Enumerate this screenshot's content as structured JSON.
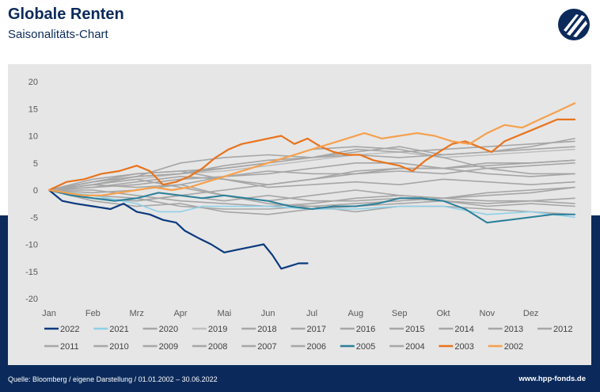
{
  "header": {
    "title": "Globale Renten",
    "subtitle": "Saisonalitäts-Chart",
    "logo_icon": "hpp-fonds-logo-icon"
  },
  "footer": {
    "source": "Quelle: Bloomberg / eigene Darstellung / 01.01.2002 – 30.06.2022",
    "url": "www.hpp-fonds.de"
  },
  "colors": {
    "navy": "#0b2a5b",
    "plot_background": "#e6e6e6",
    "grey_series": "#a6a6a6"
  },
  "chart_data": {
    "type": "line",
    "title": "Saisonalitäts-Chart",
    "xlabel": "",
    "ylabel": "",
    "ylim": [
      -20,
      20
    ],
    "yticks": [
      20,
      15,
      10,
      5,
      0,
      -5,
      -10,
      -15,
      -20
    ],
    "x_tick_labels": [
      "Jan",
      "Feb",
      "Mrz",
      "Apr",
      "Mai",
      "Jun",
      "Jul",
      "Aug",
      "Sep",
      "Okt",
      "Nov",
      "Dez"
    ],
    "grid": false,
    "legend_position": "bottom",
    "x_unit": "month index (0 = Jan, 12 = end of Dez)",
    "series": [
      {
        "name": "2022",
        "color": "#0b3a7e",
        "width": 2.2,
        "x": [
          0,
          0.3,
          0.6,
          1,
          1.4,
          1.7,
          2,
          2.3,
          2.6,
          2.9,
          3.1,
          3.4,
          3.7,
          4,
          4.3,
          4.6,
          4.9,
          5.1,
          5.3,
          5.5,
          5.7,
          5.9
        ],
        "y": [
          0,
          -2,
          -2.5,
          -3,
          -3.5,
          -2.5,
          -4,
          -4.5,
          -5.5,
          -6,
          -7.5,
          -8.8,
          -10,
          -11.5,
          -11,
          -10.5,
          -10,
          -12,
          -14.5,
          -14,
          -13.5,
          -13.5
        ]
      },
      {
        "name": "2021",
        "color": "#8fd0e8",
        "width": 1.6,
        "x": [
          0,
          1,
          2,
          2.5,
          3,
          3.5,
          4,
          5,
          6,
          7,
          8,
          9,
          10,
          11,
          12
        ],
        "y": [
          0,
          -1,
          -2.5,
          -4,
          -4,
          -3,
          -3,
          -3,
          -3.5,
          -3.5,
          -3,
          -3,
          -4.5,
          -4,
          -5
        ]
      },
      {
        "name": "2020",
        "color": "#a6a6a6",
        "width": 1.6,
        "x": [
          0,
          1,
          2,
          3,
          4,
          5,
          6,
          7,
          8,
          9,
          10,
          11,
          12
        ],
        "y": [
          0,
          1.5,
          2.5,
          5,
          6,
          6.5,
          6,
          7,
          8,
          6.5,
          7,
          8,
          9.5
        ]
      },
      {
        "name": "2019",
        "color": "#bfbfbf",
        "width": 1.6,
        "x": [
          0,
          1,
          2,
          3,
          4,
          5,
          6,
          7,
          8,
          9,
          10,
          11,
          12
        ],
        "y": [
          0,
          1,
          2,
          3,
          3.5,
          4.5,
          5.5,
          6.5,
          7,
          6,
          6.5,
          7,
          7.5
        ]
      },
      {
        "name": "2018",
        "color": "#a6a6a6",
        "width": 1.6,
        "x": [
          0,
          1,
          2,
          3,
          4,
          5,
          6,
          7,
          8,
          9,
          10,
          11,
          12
        ],
        "y": [
          0,
          -1.5,
          -2,
          -1,
          -2,
          -1,
          -2,
          -2,
          -1.5,
          -2,
          -3,
          -2.5,
          -3
        ]
      },
      {
        "name": "2017",
        "color": "#a6a6a6",
        "width": 1.6,
        "x": [
          0,
          1,
          2,
          3,
          4,
          5,
          6,
          7,
          8,
          9,
          10,
          11,
          12
        ],
        "y": [
          0,
          0.5,
          1,
          2,
          2.5,
          3.5,
          3,
          3,
          4,
          4,
          5,
          5,
          5.5
        ]
      },
      {
        "name": "2016",
        "color": "#a6a6a6",
        "width": 1.6,
        "x": [
          0,
          1,
          2,
          3,
          4,
          5,
          6,
          7,
          8,
          9,
          10,
          11,
          12
        ],
        "y": [
          0,
          2,
          3,
          3.5,
          4,
          5,
          7.5,
          8,
          7.5,
          6,
          4,
          3,
          3
        ]
      },
      {
        "name": "2015",
        "color": "#a6a6a6",
        "width": 1.6,
        "x": [
          0,
          1,
          2,
          3,
          4,
          5,
          6,
          7,
          8,
          9,
          10,
          11,
          12
        ],
        "y": [
          0,
          1.5,
          3,
          3.5,
          2,
          0.5,
          1,
          1.5,
          1,
          2,
          1.5,
          1,
          1.5
        ]
      },
      {
        "name": "2014",
        "color": "#a6a6a6",
        "width": 1.6,
        "x": [
          0,
          1,
          2,
          3,
          4,
          5,
          6,
          7,
          8,
          9,
          10,
          11,
          12
        ],
        "y": [
          0,
          1,
          2.5,
          3,
          4.5,
          5.5,
          6,
          7.5,
          7,
          7.5,
          8,
          8.5,
          9
        ]
      },
      {
        "name": "2013",
        "color": "#a6a6a6",
        "width": 1.6,
        "x": [
          0,
          1,
          2,
          3,
          4,
          5,
          6,
          7,
          8,
          9,
          10,
          11,
          12
        ],
        "y": [
          0,
          -0.5,
          0,
          1,
          -1,
          -2.5,
          -3,
          -4,
          -3,
          -3,
          -3.5,
          -4,
          -4.5
        ]
      },
      {
        "name": "2012",
        "color": "#a6a6a6",
        "width": 1.6,
        "x": [
          0,
          1,
          2,
          3,
          4,
          5,
          6,
          7,
          8,
          9,
          10,
          11,
          12
        ],
        "y": [
          0,
          1.5,
          2.5,
          3,
          4,
          5,
          6,
          6.5,
          6,
          6.5,
          7,
          7.5,
          8
        ]
      },
      {
        "name": "2011",
        "color": "#a6a6a6",
        "width": 1.6,
        "x": [
          0,
          1,
          2,
          3,
          4,
          5,
          6,
          7,
          8,
          9,
          10,
          11,
          12
        ],
        "y": [
          0,
          -1.5,
          -2,
          -1,
          0,
          1,
          2,
          3.5,
          4,
          4,
          4.5,
          5,
          5.5
        ]
      },
      {
        "name": "2010",
        "color": "#a6a6a6",
        "width": 1.6,
        "x": [
          0,
          1,
          2,
          3,
          4,
          5,
          6,
          7,
          8,
          9,
          10,
          11,
          12
        ],
        "y": [
          0,
          1,
          0.5,
          1,
          2.5,
          3,
          4,
          5,
          5,
          4,
          3,
          2.5,
          3
        ]
      },
      {
        "name": "2009",
        "color": "#a6a6a6",
        "width": 1.6,
        "x": [
          0,
          1,
          2,
          3,
          4,
          5,
          6,
          7,
          8,
          9,
          10,
          11,
          12
        ],
        "y": [
          0,
          -2,
          -3,
          -2.5,
          -4,
          -4.5,
          -3.5,
          -3,
          -2.5,
          -2,
          -2.5,
          -2,
          -1.5
        ]
      },
      {
        "name": "2008",
        "color": "#a6a6a6",
        "width": 1.6,
        "x": [
          0,
          1,
          2,
          3,
          4,
          5,
          6,
          7,
          8,
          9,
          10,
          11,
          12
        ],
        "y": [
          0,
          1,
          2,
          0.5,
          -1,
          -2,
          -1,
          0,
          -1,
          -1.5,
          -1,
          -0.5,
          0.5
        ]
      },
      {
        "name": "2007",
        "color": "#a6a6a6",
        "width": 1.6,
        "x": [
          0,
          1,
          2,
          3,
          4,
          5,
          6,
          7,
          8,
          9,
          10,
          11,
          12
        ],
        "y": [
          0,
          0,
          -1,
          -2,
          -2.5,
          -3,
          -2.5,
          -1.5,
          -1,
          -1.5,
          -0.5,
          0,
          0.5
        ]
      },
      {
        "name": "2006",
        "color": "#a6a6a6",
        "width": 1.6,
        "x": [
          0,
          1,
          2,
          3,
          4,
          5,
          6,
          7,
          8,
          9,
          10,
          11,
          12
        ],
        "y": [
          0,
          -1,
          -1.5,
          -3,
          -3.5,
          -3.5,
          -3,
          -2.5,
          -2,
          -1.5,
          -2,
          -2,
          -2.5
        ]
      },
      {
        "name": "2005",
        "color": "#2a7f9a",
        "width": 2,
        "x": [
          0,
          0.5,
          1,
          1.5,
          2,
          2.5,
          3,
          3.5,
          4,
          4.5,
          5,
          5.5,
          6,
          6.5,
          7,
          7.5,
          8,
          8.5,
          9,
          9.5,
          10,
          10.5,
          11,
          11.5,
          12
        ],
        "y": [
          0,
          -1,
          -1.5,
          -2,
          -1.5,
          -0.5,
          -1,
          -1.5,
          -1,
          -1.5,
          -2,
          -3,
          -3.5,
          -3,
          -3,
          -2.5,
          -1.5,
          -1.5,
          -2,
          -3.5,
          -6,
          -5.5,
          -5,
          -4.5,
          -4.5
        ]
      },
      {
        "name": "2004",
        "color": "#a6a6a6",
        "width": 1.6,
        "x": [
          0,
          1,
          2,
          3,
          4,
          5,
          6,
          7,
          8,
          9,
          10,
          11,
          12
        ],
        "y": [
          0,
          0.5,
          1.5,
          2.5,
          2,
          1,
          2,
          3,
          3.5,
          3,
          4,
          4.5,
          5
        ]
      },
      {
        "name": "2003",
        "color": "#e8731c",
        "width": 2.2,
        "x": [
          0,
          0.4,
          0.8,
          1.2,
          1.6,
          2,
          2.3,
          2.6,
          2.9,
          3.2,
          3.5,
          3.8,
          4.1,
          4.4,
          4.7,
          5,
          5.3,
          5.6,
          5.9,
          6.2,
          6.5,
          6.8,
          7.1,
          7.4,
          7.7,
          8,
          8.3,
          8.6,
          8.9,
          9.2,
          9.5,
          9.8,
          10.1,
          10.4,
          10.7,
          11,
          11.3,
          11.6,
          12
        ],
        "y": [
          0,
          1.5,
          2,
          3,
          3.5,
          4.5,
          3.5,
          1,
          1.5,
          2.5,
          4,
          6,
          7.5,
          8.5,
          9,
          9.5,
          10,
          8.5,
          9.5,
          8,
          7,
          6.5,
          6.5,
          5.5,
          5,
          4.5,
          3.5,
          5.5,
          7,
          8.5,
          9,
          8,
          7,
          9,
          10,
          11,
          12,
          13,
          13
        ]
      },
      {
        "name": "2002",
        "color": "#f6a04d",
        "width": 2.2,
        "x": [
          0,
          0.4,
          0.8,
          1.2,
          1.6,
          2,
          2.4,
          2.8,
          3.2,
          3.6,
          4,
          4.4,
          4.8,
          5.2,
          5.6,
          6,
          6.4,
          6.8,
          7.2,
          7.6,
          8,
          8.4,
          8.8,
          9.2,
          9.6,
          10,
          10.4,
          10.8,
          11.2,
          11.6,
          12
        ],
        "y": [
          0,
          -0.5,
          -1,
          -1,
          -0.5,
          0,
          0.5,
          0,
          0.5,
          1.5,
          2.5,
          3.5,
          4.5,
          5.5,
          6.5,
          7.5,
          8.5,
          9.5,
          10.5,
          9.5,
          10,
          10.5,
          10,
          9,
          8.5,
          10.5,
          12,
          11.5,
          13,
          14.5,
          16
        ]
      }
    ]
  }
}
